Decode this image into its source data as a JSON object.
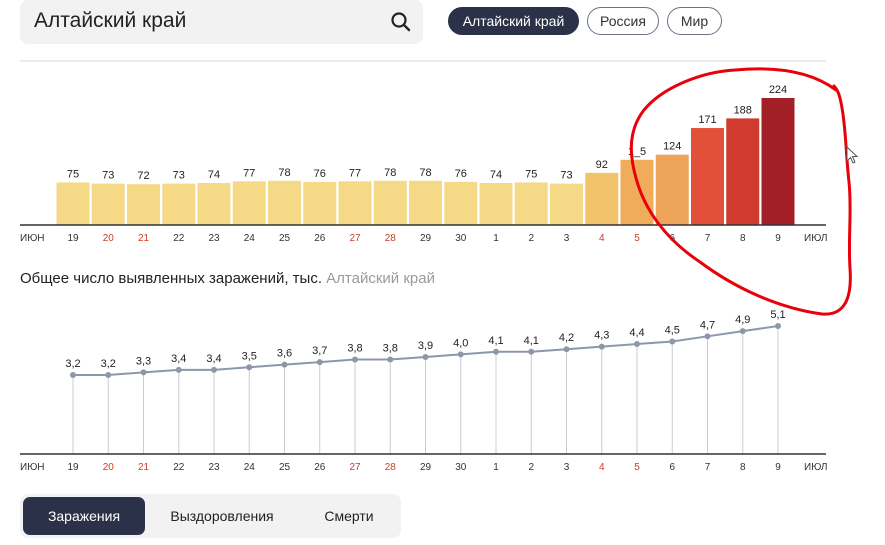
{
  "search": {
    "value": "Алтайский край"
  },
  "region_tabs": [
    {
      "label": "Алтайский край",
      "active": true
    },
    {
      "label": "Россия",
      "active": false
    },
    {
      "label": "Мир",
      "active": false
    }
  ],
  "total_chart": {
    "title": "Общее число выявленных заражений, тыс.",
    "region": "Алтайский край"
  },
  "metric_tabs": [
    {
      "label": "Заражения",
      "active": true
    },
    {
      "label": "Выздоровления",
      "active": false
    },
    {
      "label": "Смерти",
      "active": false
    }
  ],
  "x_axis": {
    "start_label": "ИЮН",
    "end_label": "ИЮЛ",
    "ticks": [
      "19",
      "20",
      "21",
      "22",
      "23",
      "24",
      "25",
      "26",
      "27",
      "28",
      "29",
      "30",
      "1",
      "2",
      "3",
      "4",
      "5",
      "6",
      "7",
      "8",
      "9"
    ],
    "weekend_indices": [
      1,
      2,
      8,
      9,
      15,
      16
    ],
    "weekend_color": "#d03a2b"
  },
  "colors": {
    "accent_dark": "#2b3149",
    "annotation": "#e8000b",
    "line": "#8d97aa"
  },
  "chart_data": [
    {
      "type": "bar",
      "categories": [
        "19",
        "20",
        "21",
        "22",
        "23",
        "24",
        "25",
        "26",
        "27",
        "28",
        "29",
        "30",
        "1",
        "2",
        "3",
        "4",
        "5",
        "6",
        "7",
        "8",
        "9"
      ],
      "values": [
        75,
        73,
        72,
        73,
        74,
        77,
        78,
        76,
        77,
        78,
        78,
        76,
        74,
        75,
        73,
        92,
        115,
        124,
        171,
        188,
        224
      ],
      "labels": [
        "75",
        "73",
        "72",
        "73",
        "74",
        "77",
        "78",
        "76",
        "77",
        "78",
        "78",
        "76",
        "74",
        "75",
        "73",
        "92",
        "1_5",
        "124",
        "171",
        "188",
        "224"
      ],
      "bar_colors": [
        "#f5d987",
        "#f5d987",
        "#f5d987",
        "#f5d987",
        "#f5d987",
        "#f5d987",
        "#f5d987",
        "#f5d987",
        "#f5d987",
        "#f5d987",
        "#f5d987",
        "#f5d987",
        "#f5d987",
        "#f5d987",
        "#f5d987",
        "#f2c26b",
        "#f0ab5b",
        "#eea35a",
        "#e2503a",
        "#d13a2e",
        "#a31f27"
      ]
    },
    {
      "type": "line",
      "categories": [
        "19",
        "20",
        "21",
        "22",
        "23",
        "24",
        "25",
        "26",
        "27",
        "28",
        "29",
        "30",
        "1",
        "2",
        "3",
        "4",
        "5",
        "6",
        "7",
        "8",
        "9"
      ],
      "values": [
        3.2,
        3.2,
        3.3,
        3.4,
        3.4,
        3.5,
        3.6,
        3.7,
        3.8,
        3.8,
        3.9,
        4.0,
        4.1,
        4.1,
        4.2,
        4.3,
        4.4,
        4.5,
        4.7,
        4.9,
        5.1
      ],
      "labels": [
        "3,2",
        "3,2",
        "3,3",
        "3,4",
        "3,4",
        "3,5",
        "3,6",
        "3,7",
        "3,8",
        "3,8",
        "3,9",
        "4,0",
        "4,1",
        "4,1",
        "4,2",
        "4,3",
        "4,4",
        "4,5",
        "4,7",
        "4,9",
        "5,1"
      ],
      "title": "Общее число выявленных заражений, тыс."
    }
  ]
}
